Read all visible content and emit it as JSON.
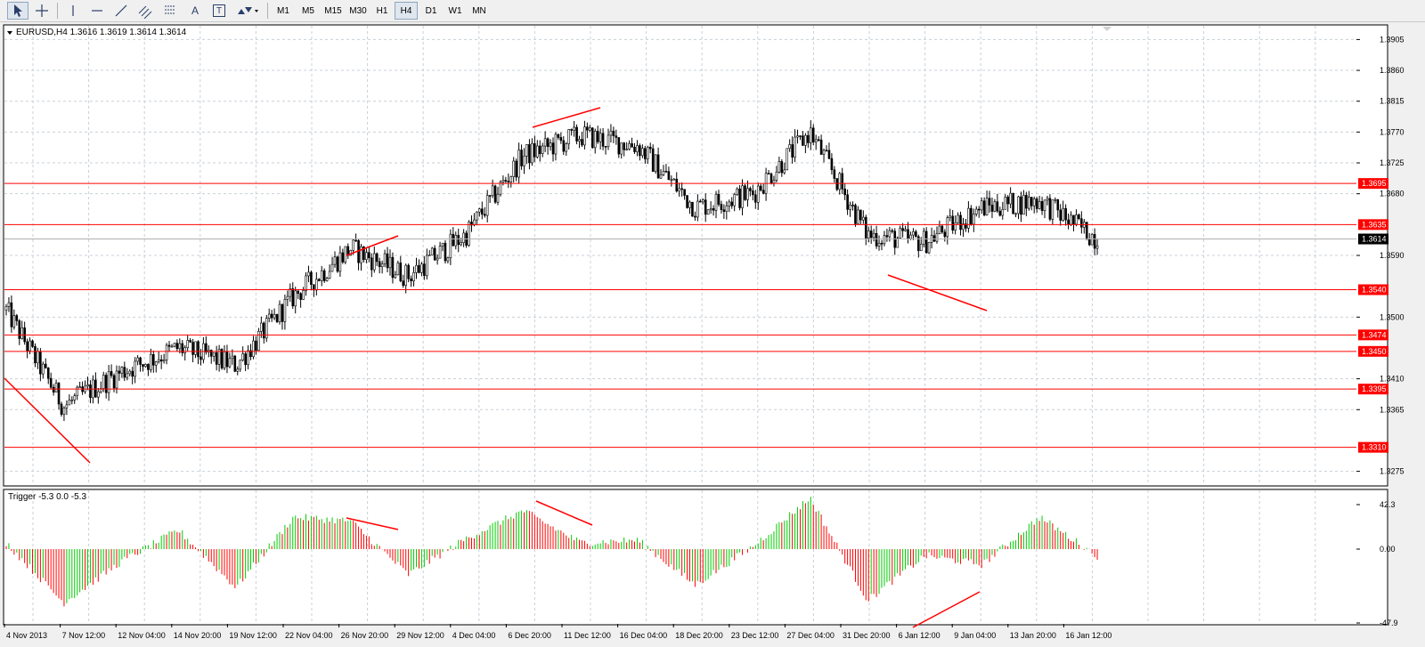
{
  "toolbar": {
    "tools": [
      {
        "name": "cursor-icon",
        "active": true
      },
      {
        "name": "crosshair-icon",
        "active": false
      },
      {
        "name": "vertical-line-icon",
        "active": false
      },
      {
        "name": "horizontal-line-icon",
        "active": false
      },
      {
        "name": "trendline-icon",
        "active": false
      },
      {
        "name": "fibonacci-channel-icon",
        "active": false
      },
      {
        "name": "fibonacci-levels-icon",
        "active": false
      },
      {
        "name": "text-icon",
        "active": false
      },
      {
        "name": "text-label-icon",
        "active": false
      },
      {
        "name": "arrows-icon",
        "active": false
      }
    ],
    "text_tool_glyph": "A",
    "label_tool_glyph": "T",
    "periods": [
      "M1",
      "M5",
      "M15",
      "M30",
      "H1",
      "H4",
      "D1",
      "W1",
      "MN"
    ],
    "active_period": "H4"
  },
  "chart": {
    "header": "EURUSD,H4  1.3616 1.3619 1.3614 1.3614",
    "symbol": "EURUSD",
    "timeframe": "H4",
    "current_price": "1.3614",
    "price_scale": [
      "1.3905",
      "1.3860",
      "1.3815",
      "1.3770",
      "1.3725",
      "1.3680",
      "1.3590",
      "1.3500",
      "1.3410",
      "1.3365",
      "1.3275"
    ],
    "price_range": [
      1.3255,
      1.3925
    ],
    "level_lines": [
      "1.3695",
      "1.3635",
      "1.3540",
      "1.3474",
      "1.3450",
      "1.3395",
      "1.3310"
    ],
    "time_labels": [
      "4 Nov 2013",
      "7 Nov 12:00",
      "12 Nov 04:00",
      "14 Nov 20:00",
      "19 Nov 12:00",
      "22 Nov 04:00",
      "26 Nov 20:00",
      "29 Nov 12:00",
      "4 Dec 04:00",
      "6 Dec 20:00",
      "11 Dec 12:00",
      "16 Dec 04:00",
      "18 Dec 20:00",
      "23 Dec 12:00",
      "27 Dec 04:00",
      "31 Dec 20:00",
      "6 Jan 12:00",
      "9 Jan 04:00",
      "13 Jan 20:00",
      "16 Jan 12:00"
    ],
    "colors": {
      "bull": "#000000",
      "bear": "#000000",
      "level": "#ff0000",
      "grid": "#c8d0d8",
      "label_bg": "#ff0000",
      "label_fg": "#ffffff"
    }
  },
  "indicator": {
    "header": "Trigger -5.3 0.0 -5.3",
    "scale": [
      "42.3",
      "0.00",
      "-47.9"
    ],
    "range": [
      -47.9,
      42.3
    ],
    "colors": {
      "up": "#00cc00",
      "down": "#ff0000"
    }
  },
  "chart_data": {
    "type": "candlestick",
    "title": "EURUSD,H4",
    "x_range": [
      "4 Nov 2013",
      "16 Jan 12:00"
    ],
    "ylim": [
      1.3275,
      1.3905
    ],
    "close_path": [
      {
        "t": "4 Nov 2013",
        "price": 1.351
      },
      {
        "t": "7 Nov 12:00",
        "price": 1.337
      },
      {
        "t": "12 Nov 04:00",
        "price": 1.342
      },
      {
        "t": "14 Nov 20:00",
        "price": 1.3455
      },
      {
        "t": "19 Nov 12:00",
        "price": 1.343
      },
      {
        "t": "22 Nov 04:00",
        "price": 1.353
      },
      {
        "t": "26 Nov 20:00",
        "price": 1.36
      },
      {
        "t": "29 Nov 12:00",
        "price": 1.356
      },
      {
        "t": "4 Dec 04:00",
        "price": 1.362
      },
      {
        "t": "6 Dec 20:00",
        "price": 1.3735
      },
      {
        "t": "11 Dec 12:00",
        "price": 1.3765
      },
      {
        "t": "16 Dec 04:00",
        "price": 1.375
      },
      {
        "t": "18 Dec 20:00",
        "price": 1.366
      },
      {
        "t": "23 Dec 12:00",
        "price": 1.368
      },
      {
        "t": "27 Dec 04:00",
        "price": 1.377
      },
      {
        "t": "31 Dec 20:00",
        "price": 1.362
      },
      {
        "t": "6 Jan 12:00",
        "price": 1.361
      },
      {
        "t": "9 Jan 04:00",
        "price": 1.366
      },
      {
        "t": "13 Jan 20:00",
        "price": 1.367
      },
      {
        "t": "16 Jan 12:00",
        "price": 1.3614
      }
    ],
    "trigger_path": [
      {
        "t": "4 Nov 2013",
        "value": 5
      },
      {
        "t": "7 Nov 12:00",
        "value": -42
      },
      {
        "t": "12 Nov 04:00",
        "value": -10
      },
      {
        "t": "14 Nov 20:00",
        "value": 15
      },
      {
        "t": "19 Nov 12:00",
        "value": -30
      },
      {
        "t": "22 Nov 04:00",
        "value": 25
      },
      {
        "t": "26 Nov 20:00",
        "value": 22
      },
      {
        "t": "29 Nov 12:00",
        "value": -20
      },
      {
        "t": "4 Dec 04:00",
        "value": 8
      },
      {
        "t": "6 Dec 20:00",
        "value": 30
      },
      {
        "t": "11 Dec 12:00",
        "value": 5
      },
      {
        "t": "16 Dec 04:00",
        "value": 7
      },
      {
        "t": "18 Dec 20:00",
        "value": -28
      },
      {
        "t": "23 Dec 12:00",
        "value": 2
      },
      {
        "t": "27 Dec 04:00",
        "value": 40
      },
      {
        "t": "31 Dec 20:00",
        "value": -40
      },
      {
        "t": "6 Jan 12:00",
        "value": -5
      },
      {
        "t": "9 Jan 04:00",
        "value": -12
      },
      {
        "t": "13 Jan 20:00",
        "value": 25
      },
      {
        "t": "16 Jan 12:00",
        "value": -5.3
      }
    ]
  }
}
